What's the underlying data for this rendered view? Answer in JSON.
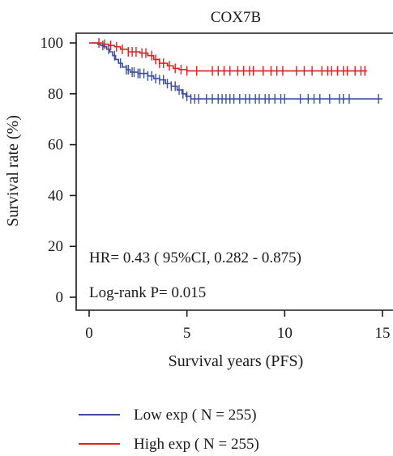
{
  "chart_data": {
    "type": "line",
    "title": "COX7B",
    "xlabel": "Survival years (PFS)",
    "ylabel": "Survival rate (%)",
    "xlim": [
      0,
      15
    ],
    "ylim": [
      0,
      100
    ],
    "xticks": [
      0,
      5,
      10,
      15
    ],
    "yticks": [
      0,
      20,
      40,
      60,
      80,
      100
    ],
    "grid": false,
    "legend": "bottom",
    "annotations": {
      "hr": "HR= 0.43 ( 95%CI, 0.282 - 0.875)",
      "logrank": "Log-rank P= 0.015"
    },
    "series": [
      {
        "name": "Low exp ( N = 255)",
        "color": "#3a4fa0",
        "steps": [
          [
            0,
            100
          ],
          [
            0.45,
            99.5
          ],
          [
            0.6,
            99
          ],
          [
            0.75,
            98.5
          ],
          [
            0.9,
            97.5
          ],
          [
            1.05,
            96.5
          ],
          [
            1.2,
            95
          ],
          [
            1.35,
            93.5
          ],
          [
            1.5,
            92
          ],
          [
            1.7,
            90.5
          ],
          [
            1.9,
            89.5
          ],
          [
            2.1,
            88.5
          ],
          [
            2.5,
            88
          ],
          [
            3.0,
            87
          ],
          [
            3.3,
            86
          ],
          [
            3.6,
            85.5
          ],
          [
            3.9,
            84
          ],
          [
            4.2,
            83
          ],
          [
            4.5,
            81.5
          ],
          [
            4.75,
            80
          ],
          [
            4.95,
            79
          ],
          [
            5.2,
            78
          ]
        ],
        "x_end": 15,
        "censored": [
          0.7,
          1.0,
          1.3,
          1.6,
          1.9,
          2.0,
          2.2,
          2.3,
          2.5,
          2.6,
          2.8,
          3.0,
          3.2,
          3.4,
          3.6,
          3.8,
          4.0,
          4.2,
          4.4,
          4.6,
          4.8,
          5.0,
          5.2,
          5.4,
          5.6,
          6.0,
          6.3,
          6.6,
          6.8,
          7.0,
          7.2,
          7.4,
          7.7,
          8.0,
          8.2,
          8.5,
          8.7,
          9.0,
          9.2,
          9.5,
          9.8,
          10.0,
          10.8,
          11.2,
          11.5,
          11.8,
          12.3,
          12.8,
          13.0,
          13.3,
          14.8
        ]
      },
      {
        "name": "High exp ( N = 255)",
        "color": "#e02020",
        "steps": [
          [
            0,
            100
          ],
          [
            0.7,
            99.5
          ],
          [
            1.0,
            99
          ],
          [
            1.3,
            98.5
          ],
          [
            1.6,
            97.5
          ],
          [
            2.0,
            96.5
          ],
          [
            2.6,
            96
          ],
          [
            3.0,
            95
          ],
          [
            3.3,
            93.5
          ],
          [
            3.6,
            92
          ],
          [
            4.0,
            91
          ],
          [
            4.3,
            90
          ],
          [
            4.6,
            89.5
          ],
          [
            5.0,
            89
          ]
        ],
        "x_end": 14.2,
        "censored": [
          0.5,
          0.8,
          1.1,
          1.4,
          1.7,
          2.0,
          2.2,
          2.4,
          2.7,
          2.9,
          3.2,
          3.4,
          3.6,
          3.8,
          4.1,
          4.4,
          4.7,
          5.0,
          5.5,
          6.3,
          6.6,
          6.9,
          7.2,
          7.6,
          7.9,
          8.2,
          8.4,
          8.9,
          9.3,
          9.6,
          9.9,
          10.6,
          11.0,
          11.4,
          11.9,
          12.2,
          12.4,
          12.7,
          13.0,
          13.2,
          13.6,
          13.9,
          14.1
        ]
      }
    ]
  }
}
